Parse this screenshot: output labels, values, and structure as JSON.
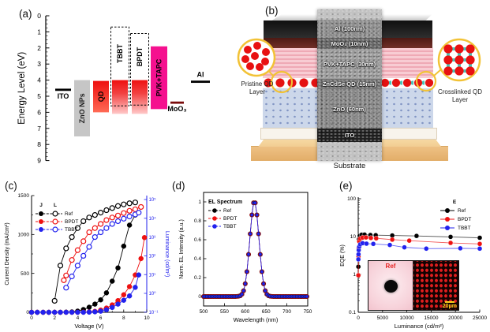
{
  "panels": {
    "a": {
      "tag": "(a)"
    },
    "b": {
      "tag": "(b)"
    },
    "c": {
      "tag": "(c)"
    },
    "d": {
      "tag": "(d)"
    },
    "e": {
      "tag": "(e)"
    }
  },
  "panel_a": {
    "axis_label": "Energy Level (eV)",
    "axis_min": 0,
    "axis_max": 9,
    "levels": [
      {
        "label": "ITO",
        "type": "level-line",
        "ev": 4.6,
        "label_side": "below",
        "color": "#000000"
      },
      {
        "label": "ZnO NPs",
        "type": "bar",
        "top_ev": 4.0,
        "bottom_ev": 7.5,
        "color": "#c6c6c6",
        "text_color": "#222222"
      },
      {
        "label": "QD",
        "type": "bar",
        "top_ev": 4.05,
        "bottom_ev": 6.0,
        "color": "#ee1111",
        "text_color": "#000000"
      },
      {
        "label": "TBBT",
        "type": "dashed-bar",
        "box_top_ev": 0.7,
        "box_bottom_ev": 5.6,
        "fill_top_ev": 4.0,
        "fill_bottom_ev": 6.1
      },
      {
        "label": "BPDT",
        "type": "dashed-bar",
        "box_top_ev": 1.1,
        "box_bottom_ev": 5.55,
        "fill_top_ev": 4.0,
        "fill_bottom_ev": 6.1
      },
      {
        "label": "PVK+TAPC",
        "type": "bar",
        "top_ev": 1.9,
        "bottom_ev": 5.8,
        "color": "#f5118f",
        "text_color": "#000000"
      },
      {
        "label": "MoO₃",
        "type": "level-line",
        "ev": 5.4,
        "label_side": "below",
        "color": "#7a0a0a"
      },
      {
        "label": "Al",
        "type": "level-line",
        "ev": 4.1,
        "label_side": "above",
        "color": "#000000"
      }
    ]
  },
  "panel_b": {
    "layers": [
      {
        "label": "Al (100nm)"
      },
      {
        "label": "MoO₃ (10nm)"
      },
      {
        "label": "PVK+TAPC (30nm)"
      },
      {
        "label": "ZnCdSe QD (15nm)"
      },
      {
        "label": "ZnO (60nm)"
      },
      {
        "label": "ITO"
      }
    ],
    "substrate_label": "Substrate",
    "left_callout_label": "Pristine QD Layer",
    "right_callout_label": "Crosslinked QD Layer"
  },
  "chart_data": [
    {
      "id": "jvl",
      "type": "line-scatter",
      "xlabel": "Voltage (V)",
      "xlim": [
        0,
        10
      ],
      "xticks": [
        0,
        2,
        4,
        6,
        8,
        10
      ],
      "ylabel_left": "Current Density (mA/cm²)",
      "ylim_left": [
        0,
        1500
      ],
      "yticks_left": [
        0,
        500,
        1000,
        1500
      ],
      "ylabel_right": "Luminance (cd/m²)",
      "yscale_right": "log",
      "ylim_right": [
        0.1,
        100000
      ],
      "yticks_right_labels": [
        "10⁵",
        "10⁴",
        "10³",
        "10²",
        "10¹",
        "10⁰",
        "10⁻¹"
      ],
      "legend": {
        "columns": [
          "J",
          "L"
        ],
        "entries": [
          "Ref",
          "BPDT",
          "TBBT"
        ],
        "colors": [
          "#000000",
          "#ee1111",
          "#2222ee"
        ]
      },
      "series": [
        {
          "name": "J Ref",
          "axis": "left",
          "marker": "filled",
          "color": "#000000",
          "x": [
            0,
            0.5,
            1,
            1.5,
            2,
            2.5,
            3,
            3.5,
            4,
            4.5,
            5,
            5.5,
            6,
            6.5,
            7,
            7.5,
            8,
            8.5,
            9
          ],
          "y": [
            0,
            0,
            0,
            0,
            0,
            0,
            2,
            5,
            15,
            35,
            65,
            105,
            160,
            250,
            400,
            570,
            850,
            1120,
            1250
          ]
        },
        {
          "name": "J BPDT",
          "axis": "left",
          "marker": "filled",
          "color": "#ee1111",
          "x": [
            0,
            0.5,
            1,
            1.5,
            2,
            2.5,
            3,
            3.5,
            4,
            4.5,
            5,
            5.5,
            6,
            6.5,
            7,
            7.5,
            8,
            8.5,
            9,
            9.5,
            9.8
          ],
          "y": [
            0,
            0,
            0,
            0,
            0,
            0,
            0,
            0,
            0,
            2,
            5,
            12,
            28,
            55,
            95,
            150,
            225,
            330,
            480,
            690,
            960
          ]
        },
        {
          "name": "J TBBT",
          "axis": "left",
          "marker": "filled",
          "color": "#2222ee",
          "x": [
            0,
            0.5,
            1,
            1.5,
            2,
            2.5,
            3,
            3.5,
            4,
            4.5,
            5,
            5.5,
            6,
            6.5,
            7,
            7.5,
            8,
            8.5,
            9,
            9.3
          ],
          "y": [
            0,
            0,
            0,
            0,
            0,
            0,
            0,
            0,
            0,
            0,
            2,
            6,
            14,
            32,
            62,
            105,
            155,
            210,
            320,
            480
          ]
        },
        {
          "name": "L Ref",
          "axis": "right",
          "marker": "open",
          "color": "#000000",
          "x": [
            2,
            2.5,
            3,
            3.5,
            4,
            4.5,
            5,
            5.5,
            6,
            6.5,
            7,
            7.5,
            8,
            8.5,
            9
          ],
          "y": [
            0.4,
            30,
            250,
            1000,
            3000,
            7000,
            11000,
            15000,
            20000,
            27000,
            35000,
            45000,
            55000,
            63000,
            70000
          ]
        },
        {
          "name": "L BPDT",
          "axis": "right",
          "marker": "open",
          "color": "#ee1111",
          "x": [
            2.8,
            3,
            3.5,
            4,
            4.5,
            5,
            5.5,
            6,
            6.5,
            7,
            7.5,
            8,
            8.5,
            9,
            9.5
          ],
          "y": [
            5,
            9,
            60,
            200,
            600,
            1800,
            3000,
            5000,
            8000,
            11000,
            14000,
            19000,
            25000,
            30000,
            40000
          ]
        },
        {
          "name": "L TBBT",
          "axis": "right",
          "marker": "open",
          "color": "#2222ee",
          "x": [
            3,
            3.5,
            4,
            4.5,
            5,
            5.5,
            6,
            6.5,
            7,
            7.5,
            8,
            8.5,
            9,
            9.3
          ],
          "y": [
            2,
            8,
            30,
            100,
            300,
            1000,
            1800,
            3000,
            5000,
            7000,
            9500,
            12500,
            16000,
            20000
          ]
        }
      ]
    },
    {
      "id": "el-spectrum",
      "type": "line-scatter",
      "legend_title": "EL Spectrum",
      "xlabel": "Wavelength (nm)",
      "xlim": [
        500,
        750
      ],
      "xticks": [
        500,
        550,
        600,
        650,
        700,
        750
      ],
      "ylabel": "Norm. EL Intensity (a.u.)",
      "ylim": [
        0,
        1
      ],
      "yticks": [
        0,
        0.2,
        0.4,
        0.6,
        0.8,
        1
      ],
      "peak_nm": 622,
      "x_start": 500,
      "x_step": 4,
      "shared_y": [
        0,
        0,
        0,
        0,
        0,
        0,
        0,
        0,
        0,
        0,
        0,
        0,
        0,
        0,
        0,
        0,
        0,
        0,
        0,
        0,
        0.001,
        0.003,
        0.008,
        0.024,
        0.061,
        0.135,
        0.262,
        0.445,
        0.662,
        0.862,
        0.99,
        0.99,
        0.862,
        0.662,
        0.445,
        0.262,
        0.135,
        0.061,
        0.024,
        0.008,
        0.003,
        0.001,
        0,
        0,
        0,
        0,
        0,
        0,
        0,
        0,
        0,
        0,
        0,
        0,
        0,
        0,
        0,
        0,
        0,
        0,
        0,
        0,
        0
      ],
      "series": [
        {
          "name": "Ref",
          "color": "#000000"
        },
        {
          "name": "BPDT",
          "color": "#ee1111"
        },
        {
          "name": "TBBT",
          "color": "#2222ee"
        }
      ]
    },
    {
      "id": "eqe",
      "type": "line-scatter",
      "legend_title": "E",
      "xlabel": "Luminance (cd/m²)",
      "xlim": [
        0,
        25000
      ],
      "xticks": [
        0,
        5000,
        10000,
        15000,
        20000,
        25000
      ],
      "ylabel": "EQE (%)",
      "yscale": "log",
      "ylim": [
        0.1,
        100
      ],
      "yticks_labels": [
        "100",
        "10",
        "1",
        "0.1"
      ],
      "series": [
        {
          "name": "Ref",
          "color": "#000000",
          "x": [
            30,
            80,
            150,
            300,
            700,
            1300,
            2500,
            3600,
            7000,
            12000,
            19000,
            25000
          ],
          "y": [
            1.6,
            5,
            8.5,
            10.5,
            11.2,
            11.3,
            11,
            10.9,
            10.7,
            10.4,
            9.8,
            9.3
          ]
        },
        {
          "name": "BPDT",
          "color": "#ee1111",
          "x": [
            30,
            60,
            100,
            200,
            400,
            900,
            1600,
            2600,
            3700,
            7000,
            10500,
            19000,
            25000
          ],
          "y": [
            0.95,
            3,
            5,
            7.5,
            8.8,
            9.4,
            9.5,
            9.2,
            9,
            8.3,
            7.8,
            6.8,
            6.4
          ]
        },
        {
          "name": "TBBT",
          "color": "#2222ee",
          "x": [
            30,
            60,
            100,
            200,
            400,
            900,
            1700,
            3100,
            6500,
            9500,
            14000,
            21000,
            25000
          ],
          "y": [
            2.5,
            3.4,
            4.4,
            5.4,
            6.2,
            6.7,
            6.5,
            6.4,
            6.0,
            5.2,
            4.8,
            4.9,
            4.8
          ]
        }
      ],
      "inset": {
        "device_label": "Ref",
        "scale_label": "20μm"
      }
    }
  ]
}
